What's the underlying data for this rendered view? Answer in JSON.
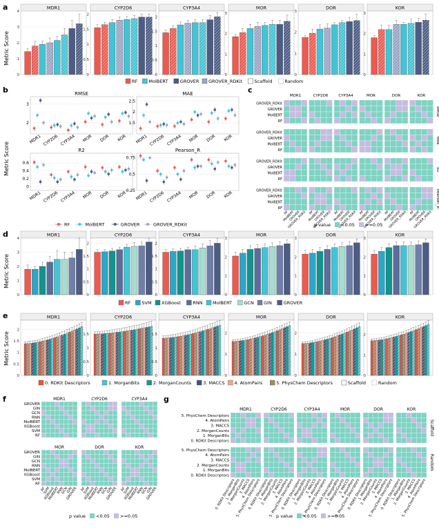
{
  "colors": {
    "RF": "#ee5a4f",
    "MolBERT": "#42c4d6",
    "GROVER": "#4b5c85",
    "GROVER_RDKit": "#9aa4c6",
    "SVM": "#2aa7c9",
    "XGBoost": "#11948f",
    "RNN": "#5b6d99",
    "GCN": "#a8dcd1",
    "GIN": "#6f7faa",
    "pv_low": "#7fd3c3",
    "pv_high": "#c3bde0",
    "fp0": "#e8553f",
    "fp1": "#4fc1d1",
    "fp2": "#119c8d",
    "fp3": "#3e5583",
    "fp4": "#f1a58a",
    "fp5": "#a08a6a"
  },
  "panel_letters": {
    "a": "a",
    "b": "b",
    "c": "c",
    "d": "d",
    "e": "e",
    "f": "f",
    "g": "g"
  },
  "ylabel": "Metric Score",
  "legend_a": {
    "items": [
      "RF",
      "MolBERT",
      "GROVER",
      "GROVER_RDKit"
    ],
    "split": [
      "Scaffold",
      "Random"
    ]
  },
  "legend_b": {
    "items": [
      "RF",
      "MolBERT",
      "GROVER",
      "GROVER_RDKit"
    ]
  },
  "legend_d": {
    "items": [
      "RF",
      "SVM",
      "XGBoost",
      "RNN",
      "MolBERT",
      "GCN",
      "GIN",
      "GROVER"
    ]
  },
  "legend_e": {
    "items": [
      "0. RDKit Descriptors",
      "1. MorganBits",
      "2. MorganCounts",
      "3. MACCS",
      "4. AtomPairs",
      "5. PhysChem Descriptors"
    ],
    "split": [
      "Scaffold",
      "Random"
    ]
  },
  "legend_pvalue": {
    "title": "p value",
    "low": "<0.05",
    "high": ">=0.05"
  },
  "chart_data": [
    {
      "id": "a",
      "type": "bar",
      "ylabel": "Metric Score",
      "facets": [
        {
          "title": "MDR1",
          "ylim": [
            0,
            4
          ],
          "ticks": [
            0,
            1,
            2,
            3,
            4
          ],
          "values": [
            1.45,
            1.8,
            1.9,
            2.0,
            2.15,
            2.5,
            2.9,
            3.2
          ],
          "err": [
            0.2,
            0.3,
            0.2,
            0.3,
            0.25,
            0.4,
            0.5,
            0.6
          ]
        },
        {
          "title": "CYP2D6",
          "ylim": [
            0,
            2.1
          ],
          "ticks": [
            0,
            0.5,
            1.0,
            1.5,
            2.0
          ],
          "values": [
            1.55,
            1.65,
            1.72,
            1.8,
            1.82,
            1.85,
            1.9,
            1.9
          ],
          "err": [
            0.1,
            0.08,
            0.1,
            0.1,
            0.1,
            0.1,
            0.1,
            0.1
          ]
        },
        {
          "title": "CYP3A4",
          "ylim": [
            0,
            2.2
          ],
          "ticks": [
            0,
            0.5,
            1.0,
            1.5,
            2.0
          ],
          "values": [
            1.45,
            1.6,
            1.72,
            1.78,
            1.8,
            1.8,
            1.9,
            2.0
          ],
          "err": [
            0.1,
            0.1,
            0.1,
            0.1,
            0.1,
            0.1,
            0.15,
            0.15
          ]
        },
        {
          "title": "MOR",
          "ylim": [
            0,
            3.1
          ],
          "ticks": [
            0,
            1,
            2,
            3
          ],
          "values": [
            1.85,
            2.05,
            2.25,
            2.35,
            2.4,
            2.45,
            2.45,
            2.6
          ],
          "err": [
            0.1,
            0.2,
            0.2,
            0.2,
            0.15,
            0.2,
            0.2,
            0.3
          ]
        },
        {
          "title": "DOR",
          "ylim": [
            0,
            3
          ],
          "ticks": [
            0,
            1,
            2,
            3
          ],
          "values": [
            1.75,
            1.95,
            2.15,
            2.2,
            2.35,
            2.45,
            2.5,
            2.55
          ],
          "err": [
            0.1,
            0.2,
            0.2,
            0.2,
            0.1,
            0.1,
            0.2,
            0.3
          ]
        },
        {
          "title": "KOR",
          "ylim": [
            0,
            3.1
          ],
          "ticks": [
            0,
            1,
            2,
            3
          ],
          "values": [
            1.8,
            2.2,
            2.2,
            2.45,
            2.45,
            2.5,
            2.55,
            2.65
          ],
          "err": [
            0.1,
            0.2,
            0.2,
            0.2,
            0.1,
            0.2,
            0.2,
            0.3
          ]
        }
      ],
      "models": [
        "RF",
        "RF",
        "MolBERT",
        "GROVER_RDKit",
        "MolBERT",
        "MolBERT",
        "GROVER",
        "GROVER"
      ],
      "hatch": [
        false,
        true,
        false,
        true,
        false,
        true,
        false,
        true
      ]
    },
    {
      "id": "b",
      "type": "scatter",
      "categories": [
        "MDR1",
        "CYP2D6",
        "CYP3A4",
        "MOR",
        "DOR",
        "KOR"
      ],
      "series_names": [
        "RF",
        "MolBERT",
        "GROVER",
        "GROVER_RDKit"
      ],
      "facets": [
        {
          "title": "RMSE",
          "ylim": [
            1.4,
            3.4
          ],
          "ticks": [
            2,
            3
          ],
          "values": [
            [
              1.7,
              2.4,
              3.2,
              2.0
            ],
            [
              1.75,
              1.85,
              1.9,
              1.8
            ],
            [
              1.6,
              1.85,
              1.95,
              1.75
            ],
            [
              2.05,
              2.5,
              2.25,
              2.35
            ],
            [
              1.9,
              2.3,
              2.45,
              2.05
            ],
            [
              2.1,
              2.5,
              2.55,
              2.35
            ]
          ]
        },
        {
          "title": "MAE",
          "ylim": [
            1.0,
            2.7
          ],
          "ticks": [
            1.5,
            2.0,
            2.5
          ],
          "values": [
            [
              1.25,
              1.85,
              2.35,
              1.55
            ],
            [
              1.35,
              1.4,
              1.45,
              1.4
            ],
            [
              1.35,
              1.5,
              1.55,
              1.45
            ],
            [
              1.65,
              2.0,
              1.85,
              1.9
            ],
            [
              1.55,
              1.95,
              2.1,
              1.7
            ],
            [
              1.7,
              2.05,
              2.1,
              1.85
            ]
          ]
        },
        {
          "title": "R2",
          "ylim": [
            -0.1,
            0.85
          ],
          "ticks": [
            0.0,
            0.2,
            0.4,
            0.6
          ],
          "values": [
            [
              0.62,
              0.5,
              0.12,
              0.55
            ],
            [
              0.3,
              0.22,
              0.12,
              0.18
            ],
            [
              0.38,
              0.25,
              0.18,
              0.3
            ],
            [
              0.5,
              0.28,
              0.38,
              0.35
            ],
            [
              0.48,
              0.38,
              0.32,
              0.42
            ],
            [
              0.5,
              0.38,
              0.42,
              0.45
            ]
          ]
        },
        {
          "title": "Pearson_R",
          "ylim": [
            0.25,
            0.82
          ],
          "ticks": [
            0.25,
            0.5,
            0.75
          ],
          "values": [
            [
              0.78,
              0.72,
              0.4,
              0.75
            ],
            [
              0.55,
              0.5,
              0.38,
              0.45
            ],
            [
              0.6,
              0.5,
              0.42,
              0.55
            ],
            [
              0.72,
              0.6,
              0.62,
              0.62
            ],
            [
              0.72,
              0.66,
              0.58,
              0.68
            ],
            [
              0.7,
              0.62,
              0.6,
              0.64
            ]
          ]
        }
      ]
    },
    {
      "id": "c",
      "type": "heatmap",
      "columns": [
        "MDR1",
        "CYP2D6",
        "CYP3A4",
        "MOR",
        "DOR",
        "KOR"
      ],
      "rows": [
        "RMSE",
        "MAE",
        "R2",
        "Pearson_R"
      ],
      "labels": [
        "GROVER_RDKit",
        "GROVER",
        "MolBERT",
        "RF"
      ],
      "xlabels": [
        "RF",
        "MolBERT",
        "GROVER",
        "GROVER_RDKit"
      ]
    },
    {
      "id": "d",
      "type": "bar",
      "ylabel": "Metric Score",
      "models": [
        "RF",
        "SVM",
        "XGBoost",
        "RNN",
        "MolBERT",
        "GCN",
        "GIN",
        "GROVER"
      ],
      "facets": [
        {
          "title": "MDR1",
          "ylim": [
            0,
            4
          ],
          "ticks": [
            0,
            1,
            2,
            3,
            4
          ],
          "values": [
            1.8,
            1.8,
            2.0,
            2.3,
            2.5,
            2.5,
            2.6,
            3.2
          ],
          "err": [
            0.3,
            0.2,
            0.3,
            0.4,
            0.6,
            0.5,
            0.4,
            0.8
          ]
        },
        {
          "title": "CYP2D6",
          "ylim": [
            0,
            2.2
          ],
          "ticks": [
            0,
            0.5,
            1.0,
            1.5,
            2.0
          ],
          "values": [
            1.65,
            1.67,
            1.7,
            1.75,
            1.85,
            1.88,
            1.9,
            2.05
          ],
          "err": [
            0.1,
            0.08,
            0.1,
            0.1,
            0.1,
            0.15,
            0.15,
            0.2
          ]
        },
        {
          "title": "CYP3A4",
          "ylim": [
            0,
            2.2
          ],
          "ticks": [
            0,
            0.5,
            1.0,
            1.5,
            2.0
          ],
          "values": [
            1.65,
            1.68,
            1.7,
            1.75,
            1.75,
            1.82,
            1.9,
            2.0
          ],
          "err": [
            0.1,
            0.1,
            0.1,
            0.1,
            0.15,
            0.15,
            0.2,
            0.2
          ]
        },
        {
          "title": "MOR",
          "ylim": [
            0,
            3
          ],
          "ticks": [
            0,
            1,
            2,
            3
          ],
          "values": [
            2.05,
            2.2,
            2.4,
            2.45,
            2.5,
            2.55,
            2.6,
            2.7
          ],
          "err": [
            0.2,
            0.2,
            0.2,
            0.2,
            0.2,
            0.2,
            0.2,
            0.2
          ]
        },
        {
          "title": "DOR",
          "ylim": [
            0,
            3
          ],
          "ticks": [
            0,
            1,
            2,
            3
          ],
          "values": [
            2.15,
            2.2,
            2.3,
            2.4,
            2.5,
            2.55,
            2.6,
            2.75
          ],
          "err": [
            0.2,
            0.2,
            0.2,
            0.2,
            0.2,
            0.2,
            0.2,
            0.2
          ]
        },
        {
          "title": "KOR",
          "ylim": [
            0,
            3
          ],
          "ticks": [
            0,
            1,
            2,
            3
          ],
          "values": [
            2.15,
            2.3,
            2.5,
            2.6,
            2.6,
            2.6,
            2.65,
            2.75
          ],
          "err": [
            0.2,
            0.2,
            0.2,
            0.2,
            0.2,
            0.2,
            0.2,
            0.2
          ]
        }
      ]
    },
    {
      "id": "e",
      "type": "bar",
      "ylabel": "Metric Score",
      "facets": [
        {
          "title": "MDR1",
          "ylim": [
            0,
            2.4
          ],
          "ticks": [
            0.0,
            0.5,
            1.0,
            1.5,
            2.0
          ],
          "start": 1.38,
          "end": 2.12
        },
        {
          "title": "CYP2D6",
          "ylim": [
            0,
            2.0
          ],
          "ticks": [
            0.0,
            0.5,
            1.0,
            1.5
          ],
          "start": 1.5,
          "end": 1.78
        },
        {
          "title": "CYP3A4",
          "ylim": [
            0,
            2.0
          ],
          "ticks": [
            0.0,
            0.5,
            1.0,
            1.5
          ],
          "start": 1.35,
          "end": 1.82
        },
        {
          "title": "MOR",
          "ylim": [
            0,
            2.6
          ],
          "ticks": [
            0,
            1,
            2
          ],
          "start": 1.6,
          "end": 2.35
        },
        {
          "title": "DOR",
          "ylim": [
            0,
            2.6
          ],
          "ticks": [
            0,
            1,
            2
          ],
          "start": 1.5,
          "end": 2.3
        },
        {
          "title": "KOR",
          "ylim": [
            0,
            2.7
          ],
          "ticks": [
            0,
            1,
            2
          ],
          "start": 1.7,
          "end": 2.5
        }
      ],
      "n_bars": 24
    },
    {
      "id": "f",
      "type": "heatmap",
      "columns_top": [
        "MDR1",
        "CYP2D6",
        "CYP3A4"
      ],
      "columns_bottom": [
        "MOR",
        "DOR",
        "KOR"
      ],
      "labels": [
        "GROVER",
        "GIN",
        "GCN",
        "RNN",
        "MolBERT",
        "XGBoost",
        "SVM",
        "RF"
      ],
      "xlabels": [
        "RF",
        "SVM",
        "XGBoost",
        "MolBERT",
        "RNN",
        "GCN",
        "GIN",
        "GROVER"
      ]
    },
    {
      "id": "g",
      "type": "heatmap",
      "columns": [
        "MDR1",
        "CYP2D6",
        "CYP3A4",
        "MOR",
        "DOR",
        "KOR"
      ],
      "rows": [
        "Scaffold",
        "Random"
      ],
      "labels": [
        "5. PhysChem Descriptors",
        "4. AtomPairs",
        "3. MACCS",
        "2. MorganCounts",
        "1. MorganBits",
        "0. RDKit Descriptors"
      ],
      "xlabels": [
        "0. RDKit Descriptors",
        "1. MorganBits",
        "2. MorganCounts",
        "3. MACCS",
        "4. AtomPairs",
        "5. PhysChem Descriptors"
      ]
    }
  ]
}
